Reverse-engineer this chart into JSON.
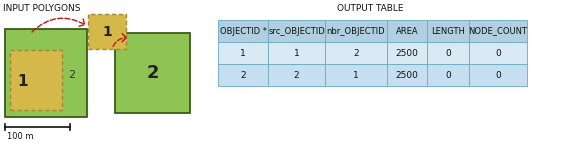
{
  "title_left": "INPUT POLYGONS",
  "title_right": "OUTPUT TABLE",
  "table_headers": [
    "OBJECTID *",
    "src_OBJECTID",
    "nbr_OBJECTID",
    "AREA",
    "LENGTH",
    "NODE_COUNT"
  ],
  "table_rows": [
    [
      "1",
      "1",
      "2",
      "2500",
      "0",
      "0"
    ],
    [
      "2",
      "2",
      "1",
      "2500",
      "0",
      "0"
    ]
  ],
  "header_bg": "#b0cfe0",
  "row1_bg": "#daeaf5",
  "row2_bg": "#c5dff0",
  "table_border": "#6aaabf",
  "poly1_fill": "#8ec454",
  "poly1_edge": "#3a5a1a",
  "poly2_fill": "#8ec454",
  "poly2_edge": "#3a5a1a",
  "yellow_fill": "#d4b84a",
  "yellow_edge": "#a08830",
  "arrow_color": "#cc1010",
  "scale_bar_color": "#111111",
  "scale_label": "100 m",
  "title_fontsize": 6.5,
  "table_header_fontsize": 6.0,
  "table_data_fontsize": 6.5
}
